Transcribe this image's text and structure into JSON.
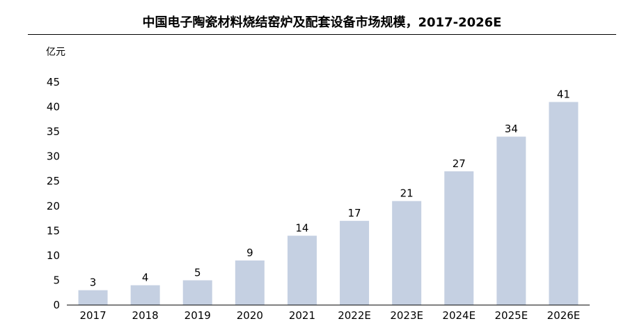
{
  "title": "中国电子陶瓷材料烧结窑炉及配套设备市场规模，2017-2026E",
  "unit_label": "亿元",
  "chart_data": {
    "type": "bar",
    "title": "中国电子陶瓷材料烧结窑炉及配套设备市场规模，2017-2026E",
    "xlabel": "",
    "ylabel": "亿元",
    "categories": [
      "2017",
      "2018",
      "2019",
      "2020",
      "2021",
      "2022E",
      "2023E",
      "2024E",
      "2025E",
      "2026E"
    ],
    "values": [
      3,
      4,
      5,
      9,
      14,
      17,
      21,
      27,
      34,
      41
    ],
    "data_labels": [
      "3",
      "4",
      "5",
      "9",
      "14",
      "17",
      "21",
      "27",
      "34",
      "41"
    ],
    "ylim": [
      0,
      45
    ],
    "yticks": [
      0,
      5,
      10,
      15,
      20,
      25,
      30,
      35,
      40,
      45
    ],
    "grid": false,
    "legend": "none",
    "bar_color": "#c5d0e2"
  }
}
